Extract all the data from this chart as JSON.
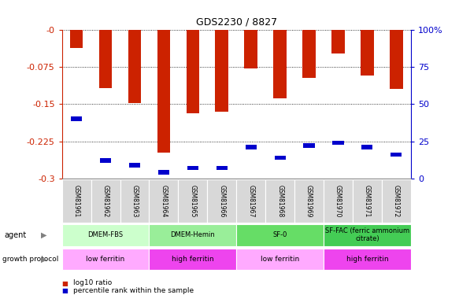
{
  "title": "GDS2230 / 8827",
  "samples": [
    "GSM81961",
    "GSM81962",
    "GSM81963",
    "GSM81964",
    "GSM81965",
    "GSM81966",
    "GSM81967",
    "GSM81968",
    "GSM81969",
    "GSM81970",
    "GSM81971",
    "GSM81972"
  ],
  "log10_ratio": [
    -0.038,
    -0.118,
    -0.148,
    -0.248,
    -0.168,
    -0.165,
    -0.078,
    -0.138,
    -0.098,
    -0.048,
    -0.093,
    -0.12
  ],
  "percentile_rank": [
    40,
    12,
    9,
    4,
    7,
    7,
    21,
    14,
    22,
    24,
    21,
    16
  ],
  "ylim_left": [
    -0.3,
    0
  ],
  "ylim_right": [
    0,
    100
  ],
  "y_ticks_left": [
    0,
    -0.075,
    -0.15,
    -0.225,
    -0.3
  ],
  "y_ticks_left_labels": [
    "-0",
    "-0.075",
    "-0.15",
    "-0.225",
    "-0.3"
  ],
  "y_ticks_right": [
    0,
    25,
    50,
    75,
    100
  ],
  "y_ticks_right_labels": [
    "0",
    "25",
    "50",
    "75",
    "100%"
  ],
  "bar_color": "#cc2200",
  "pct_color": "#0000cc",
  "agent_groups": [
    {
      "label": "DMEM-FBS",
      "start": 0,
      "end": 3,
      "color": "#ccffcc"
    },
    {
      "label": "DMEM-Hemin",
      "start": 3,
      "end": 6,
      "color": "#99ee99"
    },
    {
      "label": "SF-0",
      "start": 6,
      "end": 9,
      "color": "#66dd66"
    },
    {
      "label": "SF-FAC (ferric ammonium\ncitrate)",
      "start": 9,
      "end": 12,
      "color": "#44cc55"
    }
  ],
  "growth_groups": [
    {
      "label": "low ferritin",
      "start": 0,
      "end": 3,
      "color": "#ffaaff"
    },
    {
      "label": "high ferritin",
      "start": 3,
      "end": 6,
      "color": "#ee44ee"
    },
    {
      "label": "low ferritin",
      "start": 6,
      "end": 9,
      "color": "#ffaaff"
    },
    {
      "label": "high ferritin",
      "start": 9,
      "end": 12,
      "color": "#ee44ee"
    }
  ],
  "legend_items": [
    {
      "label": "log10 ratio",
      "color": "#cc2200"
    },
    {
      "label": "percentile rank within the sample",
      "color": "#0000cc"
    }
  ],
  "left_axis_color": "#cc2200",
  "right_axis_color": "#0000cc",
  "bar_width": 0.45
}
